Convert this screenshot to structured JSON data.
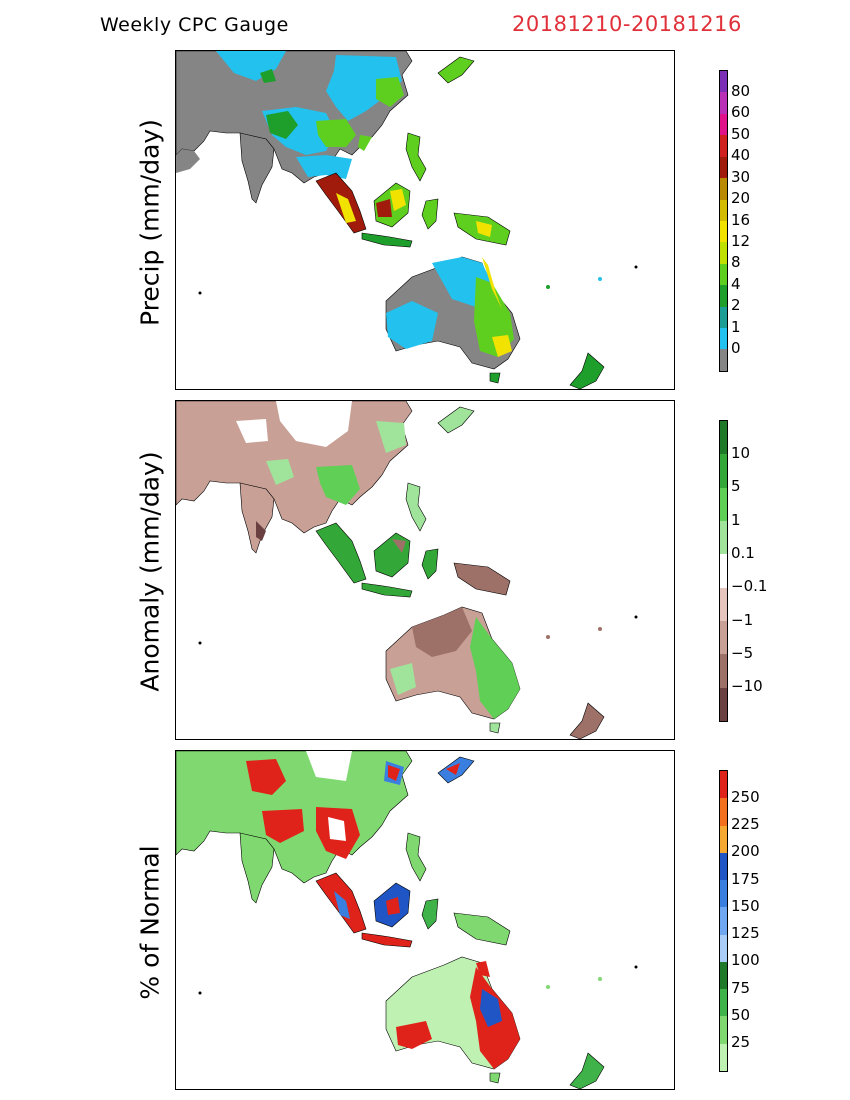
{
  "header": {
    "title": "Weekly CPC Gauge",
    "date_range": "20181210-20181216"
  },
  "panels": [
    {
      "label": "Precip (mm/day)",
      "colorbar": {
        "colors": [
          "#7a2fb6",
          "#b92fb6",
          "#e0128a",
          "#cf1f1f",
          "#a01b0c",
          "#b98a00",
          "#d4bb00",
          "#f2e200",
          "#bfe000",
          "#5fcf1f",
          "#1e9e2a",
          "#1a9e95",
          "#22c1ee",
          "#858585"
        ],
        "ticks": [
          "80",
          "60",
          "50",
          "40",
          "30",
          "20",
          "16",
          "12",
          "8",
          "4",
          "2",
          "1",
          "0"
        ]
      }
    },
    {
      "label": "Anomaly (mm/day)",
      "colorbar": {
        "colors": [
          "#1e7a28",
          "#33a838",
          "#5fcf55",
          "#9fe49a",
          "#ffffff",
          "#e7c5bf",
          "#c8a096",
          "#9d7068",
          "#6b4040"
        ],
        "ticks": [
          "10",
          "5",
          "1",
          "0.1",
          "−0.1",
          "−1",
          "−5",
          "−10"
        ]
      }
    },
    {
      "label": "% of Normal",
      "colorbar": {
        "colors": [
          "#e0231a",
          "#f2701e",
          "#f5a832",
          "#1f55c5",
          "#3a7fe0",
          "#6fa8f0",
          "#a9cdf7",
          "#1e7a28",
          "#3fb34a",
          "#80d970",
          "#bff2b2"
        ],
        "ticks": [
          "250",
          "225",
          "200",
          "175",
          "150",
          "125",
          "100",
          "75",
          "50",
          "25"
        ]
      }
    }
  ]
}
